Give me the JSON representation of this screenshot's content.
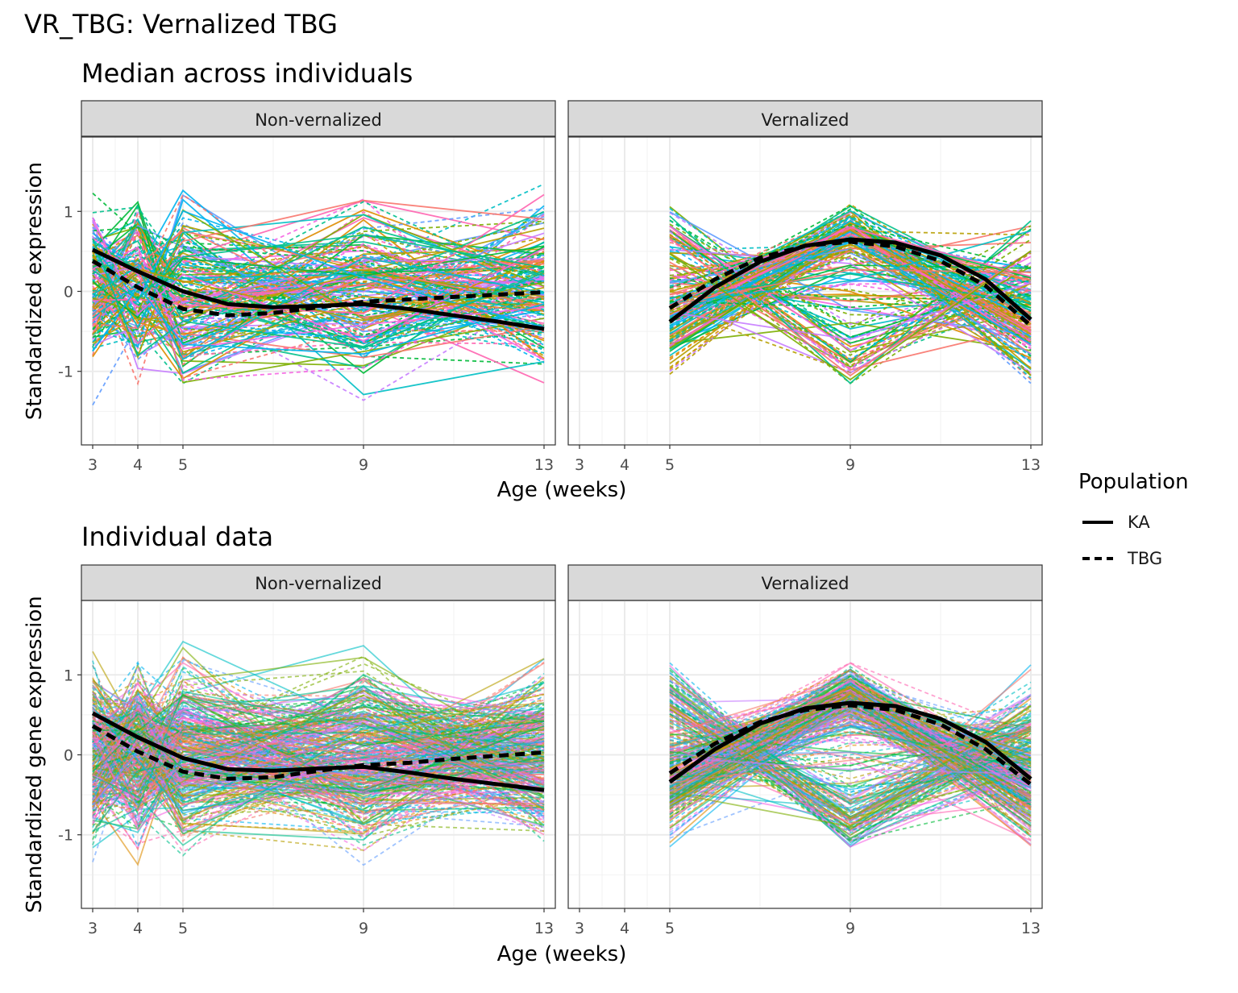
{
  "figure": {
    "title": "VR_TBG: Vernalized TBG"
  },
  "legend": {
    "title": "Population",
    "placement": "right",
    "items": [
      {
        "label": "KA",
        "linetype": "solid"
      },
      {
        "label": "TBG",
        "linetype": "dashed"
      }
    ]
  },
  "colors": {
    "palette": [
      "#F8766D",
      "#DE8C00",
      "#B79F00",
      "#7CAE00",
      "#00BA38",
      "#00C08B",
      "#00BFC4",
      "#00B4F0",
      "#619CFF",
      "#C77CFF",
      "#F564E3",
      "#FF64B0"
    ],
    "strip_fill": "#D9D9D9",
    "grid": "#EBEBEB",
    "summary": "#000000"
  },
  "chart_data": [
    {
      "type": "line",
      "subtitle": "Median across individuals",
      "xlabel": "Age (weeks)",
      "ylabel": "Standardized expression",
      "x_ticks": [
        3,
        4,
        5,
        9,
        13
      ],
      "y_ticks": [
        -1,
        0,
        1
      ],
      "xlim": [
        2.75,
        13.25
      ],
      "ylim": [
        -1.92,
        1.93
      ],
      "grid": true,
      "panels": [
        {
          "strip": "Non-vernalized",
          "x": [
            3,
            4,
            5,
            9,
            13
          ],
          "summary_series": [
            {
              "name": "KA",
              "linetype": "solid",
              "x": [
                3,
                4,
                5,
                6,
                7,
                8,
                9,
                10,
                11,
                12,
                13
              ],
              "values": [
                0.52,
                0.25,
                0.0,
                -0.16,
                -0.2,
                -0.18,
                -0.16,
                -0.22,
                -0.3,
                -0.38,
                -0.47
              ]
            },
            {
              "name": "TBG",
              "linetype": "dashed",
              "x": [
                3,
                4,
                5,
                6,
                7,
                8,
                9,
                10,
                11,
                12,
                13
              ],
              "values": [
                0.38,
                0.05,
                -0.22,
                -0.3,
                -0.27,
                -0.2,
                -0.13,
                -0.1,
                -0.07,
                -0.04,
                -0.01
              ]
            }
          ]
        },
        {
          "strip": "Vernalized",
          "x": [
            5,
            9,
            13
          ],
          "summary_series": [
            {
              "name": "KA",
              "linetype": "solid",
              "x": [
                5,
                6,
                7,
                8,
                9,
                10,
                11,
                12,
                13
              ],
              "values": [
                -0.38,
                0.05,
                0.37,
                0.57,
                0.65,
                0.61,
                0.45,
                0.15,
                -0.35
              ]
            },
            {
              "name": "TBG",
              "linetype": "dashed",
              "x": [
                5,
                6,
                7,
                8,
                9,
                10,
                11,
                12,
                13
              ],
              "values": [
                -0.21,
                0.15,
                0.42,
                0.57,
                0.62,
                0.56,
                0.38,
                0.07,
                -0.43
              ]
            }
          ]
        }
      ]
    },
    {
      "type": "line",
      "subtitle": "Individual data",
      "xlabel": "Age (weeks)",
      "ylabel": "Standardized gene expression",
      "x_ticks": [
        3,
        4,
        5,
        9,
        13
      ],
      "y_ticks": [
        -1,
        0,
        1
      ],
      "xlim": [
        2.75,
        13.25
      ],
      "ylim": [
        -1.92,
        1.93
      ],
      "grid": true,
      "panels": [
        {
          "strip": "Non-vernalized",
          "x": [
            3,
            4,
            5,
            9,
            13
          ],
          "summary_series": [
            {
              "name": "KA",
              "linetype": "solid",
              "x": [
                3,
                4,
                5,
                6,
                7,
                8,
                9,
                10,
                11,
                12,
                13
              ],
              "values": [
                0.52,
                0.22,
                -0.04,
                -0.18,
                -0.2,
                -0.17,
                -0.15,
                -0.22,
                -0.3,
                -0.37,
                -0.44
              ]
            },
            {
              "name": "TBG",
              "linetype": "dashed",
              "x": [
                3,
                4,
                5,
                6,
                7,
                8,
                9,
                10,
                11,
                12,
                13
              ],
              "values": [
                0.36,
                0.04,
                -0.21,
                -0.3,
                -0.28,
                -0.2,
                -0.13,
                -0.1,
                -0.05,
                -0.01,
                0.03
              ]
            }
          ]
        },
        {
          "strip": "Vernalized",
          "x": [
            5,
            9,
            13
          ],
          "summary_series": [
            {
              "name": "KA",
              "linetype": "solid",
              "x": [
                5,
                6,
                7,
                8,
                9,
                10,
                11,
                12,
                13
              ],
              "values": [
                -0.34,
                0.07,
                0.39,
                0.58,
                0.65,
                0.61,
                0.45,
                0.16,
                -0.3
              ]
            },
            {
              "name": "TBG",
              "linetype": "dashed",
              "x": [
                5,
                6,
                7,
                8,
                9,
                10,
                11,
                12,
                13
              ],
              "values": [
                -0.23,
                0.14,
                0.41,
                0.56,
                0.62,
                0.56,
                0.38,
                0.07,
                -0.37
              ]
            }
          ]
        }
      ]
    }
  ]
}
